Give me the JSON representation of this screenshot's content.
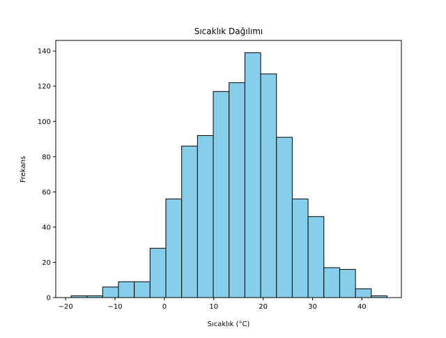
{
  "chart_data": {
    "type": "bar",
    "subtype": "histogram",
    "title": "Sıcaklık Dağılımı",
    "xlabel": "Sıcaklık (°C)",
    "ylabel": "Frekans",
    "xlim": [
      -22,
      48
    ],
    "ylim": [
      0,
      146
    ],
    "xticks": [
      -20,
      -10,
      0,
      10,
      20,
      30,
      40
    ],
    "xtick_labels": [
      "−20",
      "−10",
      "0",
      "10",
      "20",
      "30",
      "40"
    ],
    "yticks": [
      0,
      20,
      40,
      60,
      80,
      100,
      120,
      140
    ],
    "ytick_labels": [
      "0",
      "20",
      "40",
      "60",
      "80",
      "100",
      "120",
      "140"
    ],
    "bin_start": -18.9,
    "bin_width": 3.2,
    "bins": 20,
    "bin_edges": [
      -18.9,
      -15.7,
      -12.5,
      -9.3,
      -6.1,
      -2.9,
      0.3,
      3.5,
      6.7,
      9.9,
      13.1,
      16.3,
      19.5,
      22.7,
      25.9,
      29.1,
      32.3,
      35.5,
      38.7,
      41.9,
      45.1
    ],
    "values": [
      1,
      1,
      6,
      9,
      9,
      28,
      56,
      86,
      92,
      117,
      122,
      139,
      127,
      91,
      56,
      46,
      17,
      16,
      5,
      1
    ],
    "bar_color": "#87ceeb",
    "edge_color": "#000000",
    "grid": false,
    "legend": null
  }
}
